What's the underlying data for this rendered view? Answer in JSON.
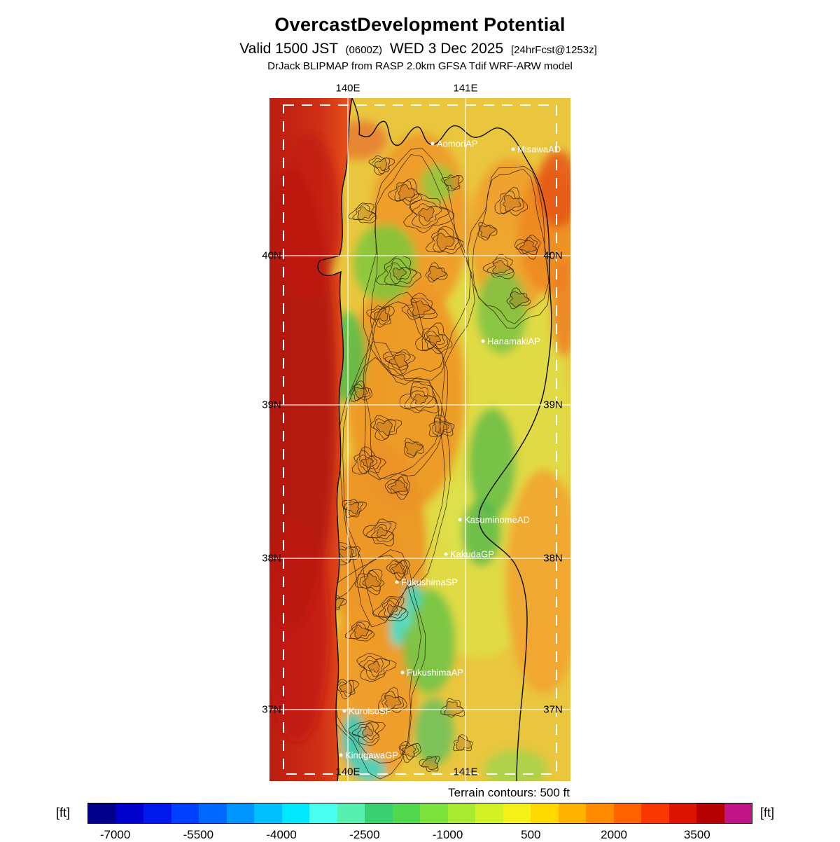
{
  "header": {
    "title": "OvercastDevelopment Potential",
    "valid_prefix": "Valid 1500 JST",
    "valid_zulu": "(0600Z)",
    "valid_date": "WED 3 Dec 2025",
    "forecast_tag": "[24hrFcst@1253z]",
    "model_line": "DrJack BLIPMAP from RASP 2.0km GFSA Tdif WRF-ARW model"
  },
  "map": {
    "lon_labels": [
      "140E",
      "141E"
    ],
    "lat_labels": [
      "40N",
      "39N",
      "38N",
      "37N"
    ],
    "stations": [
      "AomoriAP",
      "MisawaAD",
      "HanamakiAP",
      "KasuminomeAD",
      "KakudaGP",
      "FukushimaSP",
      "FukushimaAP",
      "KuroisoSF",
      "KinugawaGP"
    ]
  },
  "footer": {
    "terrain_note": "Terrain contours: 500 ft"
  },
  "colorbar": {
    "unit_label": "[ft]",
    "ticks": [
      "-7000",
      "-5500",
      "-4000",
      "-2500",
      "-1000",
      "500",
      "2000",
      "3500"
    ],
    "value_min": -7500,
    "value_max": 4500,
    "colors": [
      "#00008B",
      "#0000CD",
      "#0018EB",
      "#0040FF",
      "#0068FF",
      "#0094FF",
      "#00C0FF",
      "#00E8FF",
      "#48FFF0",
      "#58F0B0",
      "#38D070",
      "#52D84E",
      "#7EE23C",
      "#AAEA30",
      "#D2F226",
      "#F4F218",
      "#FFD900",
      "#FFB200",
      "#FF8C00",
      "#FF6200",
      "#F93800",
      "#DC1400",
      "#B40000",
      "#C01385"
    ]
  }
}
